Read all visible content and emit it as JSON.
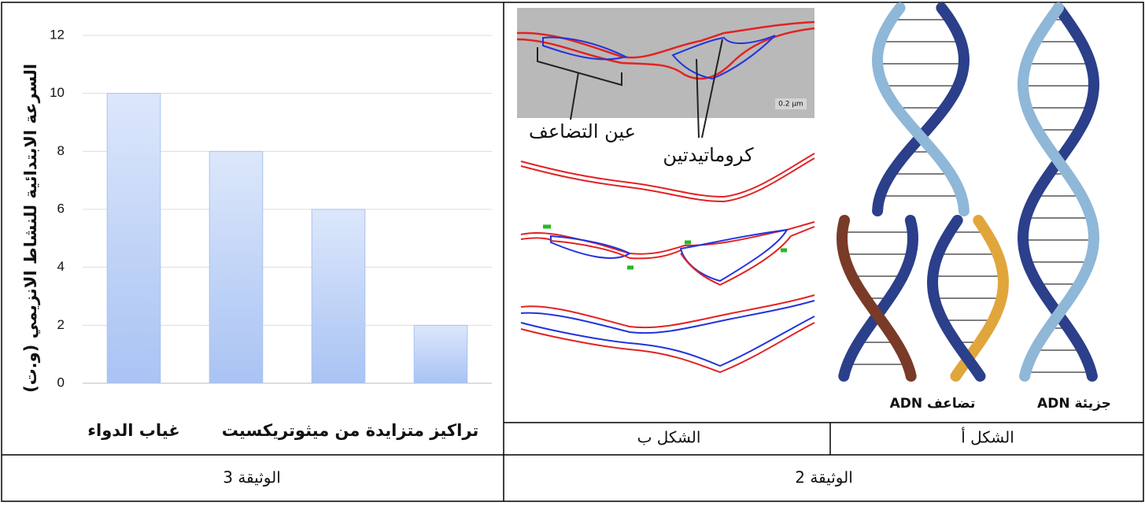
{
  "chart_data": {
    "type": "bar",
    "y_label": "السرعة الابتدائية للنشاط الانزيمي (و.ت)",
    "categories": [
      "غياب الدواء",
      null,
      null,
      null
    ],
    "group_label": "تراكيز متزايدة من ميثوتريكسيت",
    "values": [
      10,
      8,
      6,
      2
    ],
    "color": "#a9c3f3",
    "ylim": [
      0,
      12
    ],
    "yticks": [
      0,
      2,
      4,
      6,
      8,
      10,
      12
    ],
    "grid": true
  },
  "document": {
    "doc3": "الوثيقة 3",
    "doc2": "الوثيقة 2",
    "figure_b": {
      "caption": "الشكل ب",
      "replication_eye": "عين التضاعف",
      "chromatids": "كروماتيدتين",
      "scale": "0.2 µm"
    },
    "figure_a": {
      "caption": "الشكل أ",
      "molecule": "جزيئة ADN",
      "replication": "تضاعف ADN"
    }
  }
}
